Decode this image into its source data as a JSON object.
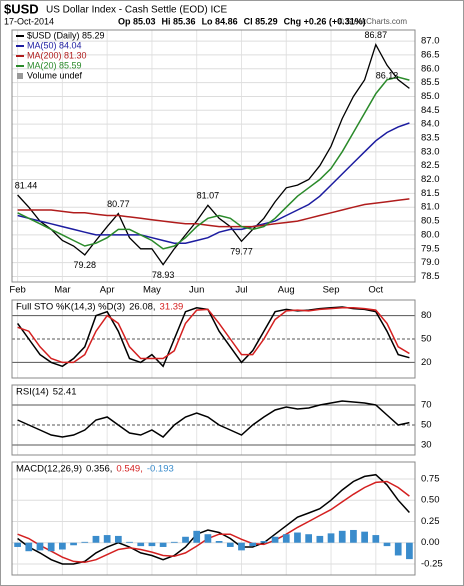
{
  "header": {
    "title": "$USD",
    "subtitle": "US Dollar Index - Cash Settle (EOD) ICE",
    "date": "17-Oct-2014",
    "quote": [
      "Op 85.03",
      "Hi 85.36",
      "Lo 84.86",
      "Cl 85.29",
      "Chg +0.26 (+0.31%)"
    ],
    "watermark": "© StockCharts.com"
  },
  "chart_data": [
    {
      "type": "line",
      "categories": [
        "Feb",
        null,
        null,
        null,
        "Mar",
        null,
        null,
        null,
        "Apr",
        null,
        null,
        null,
        "May",
        null,
        null,
        null,
        "Jun",
        null,
        null,
        null,
        "Jul",
        null,
        null,
        null,
        "Aug",
        null,
        null,
        null,
        "Sep",
        null,
        null,
        null,
        "Oct",
        null,
        null,
        null
      ],
      "series": [
        {
          "name": "$USD (Daily) 85.29",
          "color": "#000000",
          "values": [
            81.44,
            81.0,
            80.5,
            80.2,
            79.8,
            79.6,
            79.28,
            79.8,
            80.3,
            80.77,
            79.9,
            79.5,
            79.5,
            78.93,
            79.5,
            80.0,
            80.5,
            81.07,
            80.6,
            80.3,
            79.77,
            80.2,
            80.6,
            81.2,
            81.7,
            81.8,
            82.0,
            82.5,
            83.2,
            84.2,
            85.0,
            85.6,
            86.87,
            86.13,
            85.6,
            85.29
          ]
        },
        {
          "name": "MA(50) 84.04",
          "color": "#1c1ca0",
          "values": [
            80.7,
            80.6,
            80.5,
            80.4,
            80.3,
            80.2,
            80.1,
            80.0,
            80.0,
            80.0,
            80.0,
            80.0,
            79.9,
            79.8,
            79.7,
            79.7,
            79.8,
            79.9,
            80.1,
            80.2,
            80.2,
            80.3,
            80.4,
            80.5,
            80.7,
            80.9,
            81.1,
            81.4,
            81.8,
            82.2,
            82.6,
            83.0,
            83.4,
            83.7,
            83.9,
            84.04
          ]
        },
        {
          "name": "MA(200) 81.30",
          "color": "#b01c1c",
          "values": [
            80.9,
            80.9,
            80.9,
            80.9,
            80.85,
            80.8,
            80.8,
            80.75,
            80.7,
            80.7,
            80.65,
            80.6,
            80.55,
            80.5,
            80.45,
            80.4,
            80.4,
            80.35,
            80.3,
            80.3,
            80.3,
            80.3,
            80.35,
            80.4,
            80.45,
            80.5,
            80.6,
            80.7,
            80.8,
            80.9,
            81.0,
            81.1,
            81.15,
            81.2,
            81.25,
            81.3
          ]
        },
        {
          "name": "MA(20) 85.59",
          "color": "#2a8a2a",
          "values": [
            80.8,
            80.6,
            80.4,
            80.2,
            80.0,
            79.8,
            79.6,
            79.7,
            79.9,
            80.2,
            80.2,
            80.0,
            79.8,
            79.5,
            79.6,
            79.9,
            80.3,
            80.6,
            80.7,
            80.6,
            80.3,
            80.2,
            80.3,
            80.6,
            81.0,
            81.4,
            81.7,
            82.0,
            82.4,
            83.0,
            83.7,
            84.4,
            85.1,
            85.6,
            85.7,
            85.59
          ]
        }
      ],
      "legend_extra": "Volume undef",
      "labeled_points": [
        0,
        6,
        9,
        13,
        17,
        20,
        32,
        33
      ],
      "ylim": [
        78.3,
        87.4
      ],
      "yticks": [
        {
          "value": 78.5,
          "label": "78.5"
        },
        {
          "value": 79,
          "label": "79.0"
        },
        79.5,
        {
          "value": 80,
          "label": "80.0"
        },
        80.5,
        {
          "value": 81,
          "label": "81.0"
        },
        81.5,
        {
          "value": 82,
          "label": "82.0"
        },
        82.5,
        {
          "value": 83,
          "label": "83.0"
        },
        83.5,
        {
          "value": 84,
          "label": "84.0"
        },
        84.5,
        {
          "value": 85,
          "label": "85.0"
        },
        85.5,
        {
          "value": 86,
          "label": "86.0"
        },
        86.5,
        {
          "value": 87,
          "label": "87.0"
        }
      ],
      "grid": true
    },
    {
      "type": "line",
      "label": "Full STO %K(14,3) %D(3)",
      "series": [
        {
          "legend": "26.08,",
          "color": "#000000",
          "values": [
            70,
            50,
            30,
            20,
            15,
            25,
            40,
            80,
            85,
            60,
            25,
            20,
            30,
            15,
            50,
            85,
            90,
            88,
            60,
            40,
            20,
            35,
            60,
            85,
            88,
            86,
            87,
            89,
            90,
            91,
            89,
            88,
            85,
            60,
            30,
            26.08
          ]
        },
        {
          "legend": "31.39",
          "color": "#d42020",
          "values": [
            65,
            60,
            40,
            25,
            20,
            20,
            30,
            60,
            80,
            70,
            40,
            25,
            25,
            25,
            35,
            70,
            87,
            88,
            70,
            50,
            30,
            30,
            50,
            75,
            86,
            87,
            86,
            88,
            89,
            90,
            90,
            89,
            87,
            70,
            40,
            31.39
          ]
        }
      ],
      "ylim": [
        0,
        100
      ],
      "yticks": [
        20,
        50,
        80
      ],
      "grid": true
    },
    {
      "type": "line",
      "label": "RSI(14)",
      "series": [
        {
          "legend": "52.41",
          "color": "#000000",
          "values": [
            55,
            50,
            45,
            40,
            38,
            40,
            45,
            55,
            58,
            50,
            42,
            40,
            45,
            38,
            50,
            58,
            62,
            58,
            50,
            45,
            40,
            50,
            58,
            65,
            68,
            66,
            67,
            70,
            72,
            74,
            73,
            72,
            70,
            60,
            50,
            52.41
          ]
        }
      ],
      "ylim": [
        20,
        90
      ],
      "yticks": [
        30,
        50,
        70
      ],
      "grid": true
    },
    {
      "type": "line",
      "label": "MACD(12,26,9)",
      "series": [
        {
          "legend": "0.356,",
          "color": "#000000",
          "values": [
            0.05,
            -0.05,
            -0.12,
            -0.2,
            -0.25,
            -0.25,
            -0.22,
            -0.12,
            -0.05,
            0.0,
            -0.05,
            -0.12,
            -0.15,
            -0.2,
            -0.15,
            -0.05,
            0.1,
            0.15,
            0.12,
            0.05,
            -0.05,
            -0.05,
            0.0,
            0.1,
            0.2,
            0.3,
            0.35,
            0.4,
            0.5,
            0.62,
            0.72,
            0.78,
            0.8,
            0.68,
            0.5,
            0.356
          ]
        },
        {
          "legend": "0.549,",
          "color": "#d42020",
          "values": [
            0.1,
            0.05,
            -0.03,
            -0.1,
            -0.17,
            -0.22,
            -0.23,
            -0.2,
            -0.14,
            -0.08,
            -0.06,
            -0.08,
            -0.11,
            -0.15,
            -0.16,
            -0.12,
            -0.04,
            0.05,
            0.1,
            0.1,
            0.04,
            -0.01,
            -0.02,
            0.03,
            0.1,
            0.18,
            0.25,
            0.32,
            0.39,
            0.48,
            0.57,
            0.65,
            0.71,
            0.72,
            0.65,
            0.549
          ]
        },
        {
          "legend": "-0.193",
          "color": "#3a8ccc",
          "style": "histogram",
          "values": [
            -0.05,
            -0.1,
            -0.09,
            -0.1,
            -0.08,
            -0.03,
            0.01,
            0.08,
            0.09,
            0.08,
            0.01,
            -0.04,
            -0.04,
            -0.05,
            0.01,
            0.07,
            0.14,
            0.1,
            0.02,
            -0.05,
            -0.09,
            -0.04,
            0.02,
            0.07,
            0.1,
            0.12,
            0.1,
            0.08,
            0.11,
            0.14,
            0.15,
            0.13,
            0.09,
            -0.04,
            -0.15,
            -0.193
          ]
        }
      ],
      "ylim": [
        -0.38,
        0.95
      ],
      "yticks": [
        -0.25,
        {
          "value": 0,
          "label": "0.00"
        },
        0.25,
        {
          "value": 0.5,
          "label": "0.50"
        },
        0.75
      ],
      "grid": true
    }
  ]
}
